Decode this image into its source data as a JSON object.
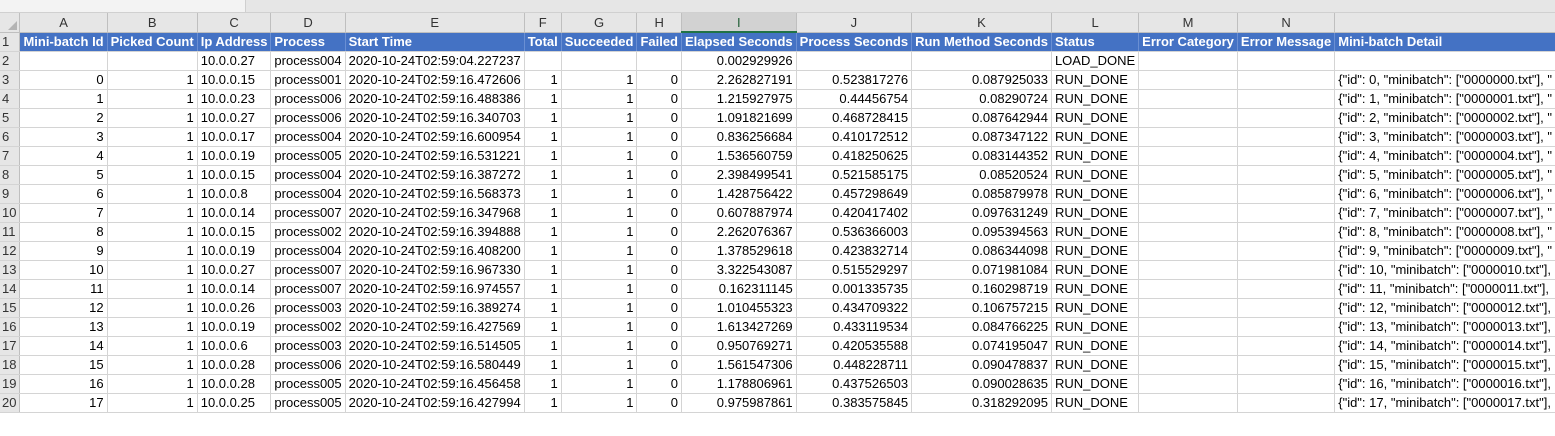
{
  "columns": [
    "A",
    "B",
    "C",
    "D",
    "E",
    "F",
    "G",
    "H",
    "I",
    "J",
    "K",
    "L",
    "M",
    "N",
    ""
  ],
  "headers": [
    "Mini-batch Id",
    "Picked Count",
    "Ip Address",
    "Process",
    "Start Time",
    "Total",
    "Succeeded",
    "Failed",
    "Elapsed Seconds",
    "Process Seconds",
    "Run Method Seconds",
    "Status",
    "Error Category",
    "Error Message",
    "Mini-batch Detail"
  ],
  "selected_column": "I",
  "rows": [
    [
      "",
      "",
      "10.0.0.27",
      "process004",
      "2020-10-24T02:59:04.227237",
      "",
      "",
      "",
      "0.002929926",
      "",
      "",
      "LOAD_DONE",
      "",
      "",
      ""
    ],
    [
      "0",
      "1",
      "10.0.0.15",
      "process001",
      "2020-10-24T02:59:16.472606",
      "1",
      "1",
      "0",
      "2.262827191",
      "0.523817276",
      "0.087925033",
      "RUN_DONE",
      "",
      "",
      "{\"id\": 0, \"minibatch\": [\"0000000.txt\"], \""
    ],
    [
      "1",
      "1",
      "10.0.0.23",
      "process006",
      "2020-10-24T02:59:16.488386",
      "1",
      "1",
      "0",
      "1.215927975",
      "0.44456754",
      "0.08290724",
      "RUN_DONE",
      "",
      "",
      "{\"id\": 1, \"minibatch\": [\"0000001.txt\"], \""
    ],
    [
      "2",
      "1",
      "10.0.0.27",
      "process006",
      "2020-10-24T02:59:16.340703",
      "1",
      "1",
      "0",
      "1.091821699",
      "0.468728415",
      "0.087642944",
      "RUN_DONE",
      "",
      "",
      "{\"id\": 2, \"minibatch\": [\"0000002.txt\"], \""
    ],
    [
      "3",
      "1",
      "10.0.0.17",
      "process004",
      "2020-10-24T02:59:16.600954",
      "1",
      "1",
      "0",
      "0.836256684",
      "0.410172512",
      "0.087347122",
      "RUN_DONE",
      "",
      "",
      "{\"id\": 3, \"minibatch\": [\"0000003.txt\"], \""
    ],
    [
      "4",
      "1",
      "10.0.0.19",
      "process005",
      "2020-10-24T02:59:16.531221",
      "1",
      "1",
      "0",
      "1.536560759",
      "0.418250625",
      "0.083144352",
      "RUN_DONE",
      "",
      "",
      "{\"id\": 4, \"minibatch\": [\"0000004.txt\"], \""
    ],
    [
      "5",
      "1",
      "10.0.0.15",
      "process004",
      "2020-10-24T02:59:16.387272",
      "1",
      "1",
      "0",
      "2.398499541",
      "0.521585175",
      "0.08520524",
      "RUN_DONE",
      "",
      "",
      "{\"id\": 5, \"minibatch\": [\"0000005.txt\"], \""
    ],
    [
      "6",
      "1",
      "10.0.0.8",
      "process004",
      "2020-10-24T02:59:16.568373",
      "1",
      "1",
      "0",
      "1.428756422",
      "0.457298649",
      "0.085879978",
      "RUN_DONE",
      "",
      "",
      "{\"id\": 6, \"minibatch\": [\"0000006.txt\"], \""
    ],
    [
      "7",
      "1",
      "10.0.0.14",
      "process007",
      "2020-10-24T02:59:16.347968",
      "1",
      "1",
      "0",
      "0.607887974",
      "0.420417402",
      "0.097631249",
      "RUN_DONE",
      "",
      "",
      "{\"id\": 7, \"minibatch\": [\"0000007.txt\"], \""
    ],
    [
      "8",
      "1",
      "10.0.0.15",
      "process002",
      "2020-10-24T02:59:16.394888",
      "1",
      "1",
      "0",
      "2.262076367",
      "0.536366003",
      "0.095394563",
      "RUN_DONE",
      "",
      "",
      "{\"id\": 8, \"minibatch\": [\"0000008.txt\"], \""
    ],
    [
      "9",
      "1",
      "10.0.0.19",
      "process004",
      "2020-10-24T02:59:16.408200",
      "1",
      "1",
      "0",
      "1.378529618",
      "0.423832714",
      "0.086344098",
      "RUN_DONE",
      "",
      "",
      "{\"id\": 9, \"minibatch\": [\"0000009.txt\"], \""
    ],
    [
      "10",
      "1",
      "10.0.0.27",
      "process007",
      "2020-10-24T02:59:16.967330",
      "1",
      "1",
      "0",
      "3.322543087",
      "0.515529297",
      "0.071981084",
      "RUN_DONE",
      "",
      "",
      "{\"id\": 10, \"minibatch\": [\"0000010.txt\"],"
    ],
    [
      "11",
      "1",
      "10.0.0.14",
      "process007",
      "2020-10-24T02:59:16.974557",
      "1",
      "1",
      "0",
      "0.162311145",
      "0.001335735",
      "0.160298719",
      "RUN_DONE",
      "",
      "",
      "{\"id\": 11, \"minibatch\": [\"0000011.txt\"],"
    ],
    [
      "12",
      "1",
      "10.0.0.26",
      "process003",
      "2020-10-24T02:59:16.389274",
      "1",
      "1",
      "0",
      "1.010455323",
      "0.434709322",
      "0.106757215",
      "RUN_DONE",
      "",
      "",
      "{\"id\": 12, \"minibatch\": [\"0000012.txt\"],"
    ],
    [
      "13",
      "1",
      "10.0.0.19",
      "process002",
      "2020-10-24T02:59:16.427569",
      "1",
      "1",
      "0",
      "1.613427269",
      "0.433119534",
      "0.084766225",
      "RUN_DONE",
      "",
      "",
      "{\"id\": 13, \"minibatch\": [\"0000013.txt\"],"
    ],
    [
      "14",
      "1",
      "10.0.0.6",
      "process003",
      "2020-10-24T02:59:16.514505",
      "1",
      "1",
      "0",
      "0.950769271",
      "0.420535588",
      "0.074195047",
      "RUN_DONE",
      "",
      "",
      "{\"id\": 14, \"minibatch\": [\"0000014.txt\"],"
    ],
    [
      "15",
      "1",
      "10.0.0.28",
      "process006",
      "2020-10-24T02:59:16.580449",
      "1",
      "1",
      "0",
      "1.561547306",
      "0.448228711",
      "0.090478837",
      "RUN_DONE",
      "",
      "",
      "{\"id\": 15, \"minibatch\": [\"0000015.txt\"],"
    ],
    [
      "16",
      "1",
      "10.0.0.28",
      "process005",
      "2020-10-24T02:59:16.456458",
      "1",
      "1",
      "0",
      "1.178806961",
      "0.437526503",
      "0.090028635",
      "RUN_DONE",
      "",
      "",
      "{\"id\": 16, \"minibatch\": [\"0000016.txt\"],"
    ],
    [
      "17",
      "1",
      "10.0.0.25",
      "process005",
      "2020-10-24T02:59:16.427994",
      "1",
      "1",
      "0",
      "0.975987861",
      "0.383575845",
      "0.318292095",
      "RUN_DONE",
      "",
      "",
      "{\"id\": 17, \"minibatch\": [\"0000017.txt\"],"
    ]
  ],
  "colors": {
    "header_fill": "#4472c4",
    "header_text": "#ffffff",
    "selected_col": "#217346"
  }
}
